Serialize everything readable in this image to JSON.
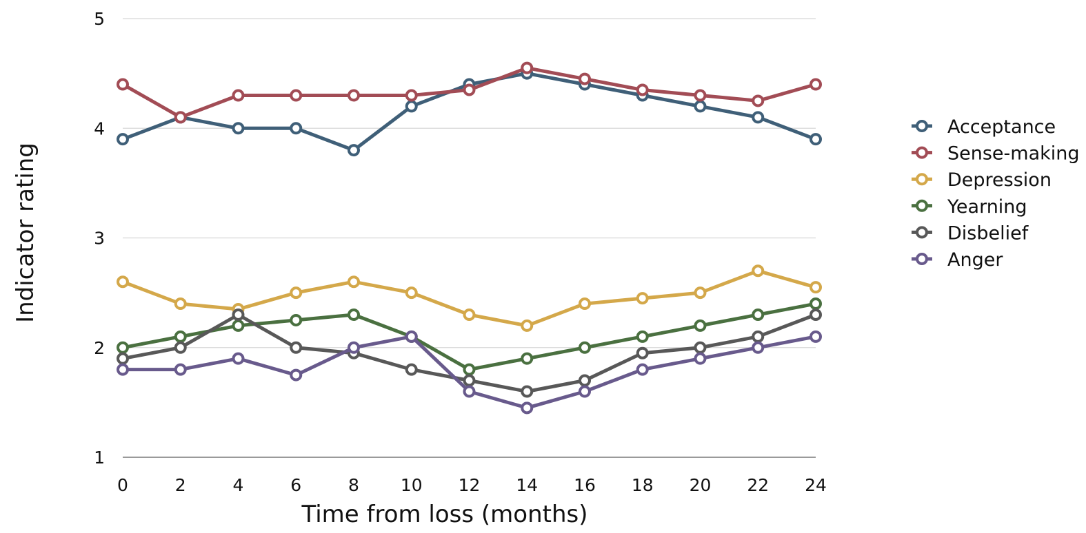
{
  "chart_data": {
    "type": "line",
    "title": "",
    "xlabel": "Time from loss (months)",
    "ylabel": "Indicator rating",
    "x": [
      0,
      2,
      4,
      6,
      8,
      10,
      12,
      14,
      16,
      18,
      20,
      22,
      24
    ],
    "xlim": [
      0,
      24
    ],
    "ylim": [
      1,
      5
    ],
    "yticks": [
      "1",
      "2",
      "3",
      "4",
      "5"
    ],
    "grid": "horizontal",
    "legend_position": "right",
    "series": [
      {
        "name": "Acceptance",
        "color": "#3f5f78",
        "values": [
          3.9,
          4.1,
          4.0,
          4.0,
          3.8,
          4.2,
          4.4,
          4.5,
          4.4,
          4.3,
          4.2,
          4.1,
          3.9
        ]
      },
      {
        "name": "Sense-making",
        "color": "#a24c55",
        "values": [
          4.4,
          4.1,
          4.3,
          4.3,
          4.3,
          4.3,
          4.35,
          4.55,
          4.45,
          4.35,
          4.3,
          4.25,
          4.4
        ]
      },
      {
        "name": "Depression",
        "color": "#d4a84a",
        "values": [
          2.6,
          2.4,
          2.35,
          2.5,
          2.6,
          2.5,
          2.3,
          2.2,
          2.4,
          2.45,
          2.5,
          2.7,
          2.55
        ]
      },
      {
        "name": "Yearning",
        "color": "#4a7040",
        "values": [
          2.0,
          2.1,
          2.2,
          2.25,
          2.3,
          2.1,
          1.8,
          1.9,
          2.0,
          2.1,
          2.2,
          2.3,
          2.4
        ]
      },
      {
        "name": "Disbelief",
        "color": "#585858",
        "values": [
          1.9,
          2.0,
          2.3,
          2.0,
          1.95,
          1.8,
          1.7,
          1.6,
          1.7,
          1.95,
          2.0,
          2.1,
          2.3
        ]
      },
      {
        "name": "Anger",
        "color": "#685a8c",
        "values": [
          1.8,
          1.8,
          1.9,
          1.75,
          2.0,
          2.1,
          1.6,
          1.45,
          1.6,
          1.8,
          1.9,
          2.0,
          2.1
        ]
      }
    ]
  }
}
